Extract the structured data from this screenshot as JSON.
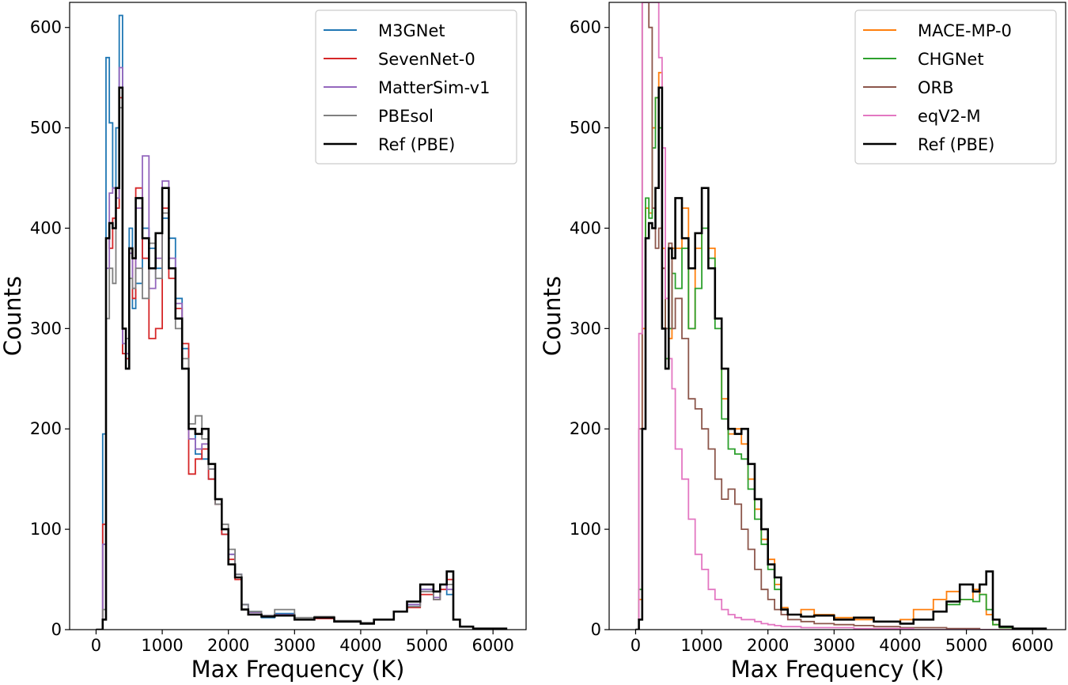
{
  "chart_data": [
    {
      "type": "step-histogram",
      "xlabel": "Max Frequency (K)",
      "ylabel": "Counts",
      "xlim": [
        -400,
        6500
      ],
      "ylim": [
        0,
        625
      ],
      "xticks": [
        0,
        1000,
        2000,
        3000,
        4000,
        5000,
        6000
      ],
      "yticks": [
        0,
        100,
        200,
        300,
        400,
        500,
        600
      ],
      "legend_position": "upper-right",
      "series": [
        {
          "name": "M3GNet",
          "color": "#1f77b4",
          "x": [
            0,
            100,
            150,
            200,
            250,
            300,
            350,
            400,
            450,
            500,
            550,
            600,
            700,
            800,
            900,
            1000,
            1100,
            1200,
            1300,
            1400,
            1500,
            1600,
            1700,
            1800,
            1900,
            2000,
            2100,
            2200,
            2300,
            2500,
            2700,
            3000,
            3300,
            3600,
            4000,
            4200,
            4500,
            4700,
            4900,
            5100,
            5200,
            5300,
            5400,
            5500,
            5700,
            6200
          ],
          "y": [
            0,
            195,
            570,
            505,
            440,
            500,
            612,
            275,
            270,
            400,
            320,
            345,
            400,
            380,
            360,
            410,
            390,
            330,
            280,
            200,
            175,
            170,
            150,
            125,
            95,
            75,
            55,
            25,
            18,
            12,
            16,
            10,
            12,
            8,
            6,
            10,
            18,
            25,
            40,
            30,
            45,
            35,
            10,
            3,
            1,
            0
          ]
        },
        {
          "name": "SevenNet-0",
          "color": "#d62728",
          "x": [
            0,
            100,
            150,
            200,
            250,
            300,
            350,
            400,
            450,
            500,
            550,
            600,
            700,
            800,
            900,
            1000,
            1100,
            1200,
            1300,
            1400,
            1500,
            1600,
            1700,
            1800,
            1900,
            2000,
            2100,
            2200,
            2300,
            2500,
            2700,
            3000,
            3300,
            3600,
            4000,
            4200,
            4500,
            4700,
            4900,
            5100,
            5200,
            5300,
            5400,
            5500,
            5700,
            6200
          ],
          "y": [
            0,
            105,
            390,
            380,
            410,
            420,
            530,
            275,
            270,
            380,
            330,
            440,
            370,
            290,
            300,
            420,
            350,
            320,
            285,
            155,
            170,
            180,
            150,
            125,
            95,
            70,
            50,
            20,
            15,
            13,
            14,
            10,
            11,
            8,
            6,
            10,
            18,
            22,
            35,
            30,
            40,
            50,
            10,
            3,
            1,
            0
          ]
        },
        {
          "name": "MatterSim-v1",
          "color": "#9467bd",
          "x": [
            0,
            100,
            150,
            200,
            250,
            300,
            350,
            400,
            450,
            500,
            550,
            600,
            700,
            800,
            900,
            1000,
            1100,
            1200,
            1300,
            1400,
            1500,
            1600,
            1700,
            1800,
            1900,
            2000,
            2100,
            2200,
            2300,
            2500,
            2700,
            3000,
            3300,
            3600,
            4000,
            4200,
            4500,
            4700,
            4900,
            5100,
            5200,
            5300,
            5400,
            5500,
            5700,
            6200
          ],
          "y": [
            0,
            85,
            360,
            435,
            440,
            430,
            560,
            285,
            275,
            375,
            340,
            420,
            472,
            340,
            370,
            447,
            370,
            325,
            260,
            190,
            180,
            185,
            160,
            130,
            100,
            75,
            55,
            25,
            17,
            14,
            15,
            10,
            12,
            8,
            6,
            10,
            18,
            25,
            40,
            32,
            45,
            40,
            10,
            3,
            1,
            0
          ]
        },
        {
          "name": "PBEsol",
          "color": "#7f7f7f",
          "x": [
            0,
            100,
            150,
            200,
            250,
            300,
            350,
            400,
            450,
            500,
            550,
            600,
            700,
            800,
            900,
            1000,
            1100,
            1200,
            1300,
            1400,
            1500,
            1600,
            1700,
            1800,
            1900,
            2000,
            2100,
            2200,
            2300,
            2500,
            2700,
            3000,
            3300,
            3600,
            4000,
            4200,
            4500,
            4700,
            4900,
            5100,
            5200,
            5300,
            5400,
            5500,
            5700,
            6200
          ],
          "y": [
            0,
            20,
            310,
            360,
            345,
            440,
            520,
            300,
            290,
            350,
            340,
            360,
            330,
            385,
            350,
            415,
            360,
            300,
            270,
            205,
            213,
            190,
            160,
            125,
            105,
            80,
            55,
            25,
            18,
            14,
            20,
            12,
            13,
            9,
            7,
            10,
            18,
            23,
            38,
            30,
            45,
            45,
            10,
            3,
            1,
            0
          ]
        },
        {
          "name": "Ref (PBE)",
          "color": "#000000",
          "width": 2.6,
          "x": [
            0,
            100,
            150,
            200,
            250,
            300,
            350,
            400,
            450,
            500,
            550,
            600,
            700,
            800,
            900,
            1000,
            1100,
            1200,
            1300,
            1400,
            1500,
            1600,
            1700,
            1800,
            1900,
            2000,
            2100,
            2200,
            2300,
            2500,
            2700,
            3000,
            3300,
            3600,
            4000,
            4200,
            4500,
            4700,
            4900,
            5100,
            5200,
            5300,
            5400,
            5500,
            5700,
            6200
          ],
          "y": [
            0,
            10,
            390,
            405,
            400,
            440,
            540,
            300,
            260,
            380,
            370,
            430,
            390,
            360,
            395,
            440,
            360,
            310,
            260,
            200,
            195,
            200,
            165,
            130,
            100,
            65,
            52,
            20,
            15,
            13,
            14,
            10,
            12,
            8,
            6,
            10,
            18,
            28,
            45,
            38,
            45,
            58,
            10,
            3,
            1,
            0
          ]
        }
      ]
    },
    {
      "type": "step-histogram",
      "xlabel": "Max Frequency (K)",
      "ylabel": "Counts",
      "xlim": [
        -400,
        6500
      ],
      "ylim": [
        0,
        625
      ],
      "xticks": [
        0,
        1000,
        2000,
        3000,
        4000,
        5000,
        6000
      ],
      "yticks": [
        0,
        100,
        200,
        300,
        400,
        500,
        600
      ],
      "legend_position": "upper-right",
      "series": [
        {
          "name": "MACE-MP-0",
          "color": "#ff7f0e",
          "x": [
            0,
            50,
            100,
            150,
            200,
            250,
            300,
            350,
            400,
            450,
            500,
            550,
            600,
            700,
            800,
            900,
            1000,
            1100,
            1200,
            1300,
            1400,
            1500,
            1600,
            1700,
            1800,
            1900,
            2000,
            2100,
            2200,
            2300,
            2500,
            2700,
            3000,
            3300,
            3600,
            4000,
            4200,
            4500,
            4700,
            4900,
            5100,
            5200,
            5300,
            5400,
            5500,
            5700,
            6200
          ],
          "y": [
            0,
            30,
            300,
            420,
            415,
            500,
            530,
            555,
            380,
            270,
            290,
            380,
            380,
            420,
            300,
            380,
            440,
            380,
            310,
            230,
            195,
            200,
            185,
            150,
            120,
            90,
            70,
            45,
            22,
            15,
            20,
            15,
            12,
            10,
            8,
            10,
            20,
            30,
            38,
            30,
            40,
            35,
            15,
            5,
            2,
            0
          ]
        },
        {
          "name": "CHGNet",
          "color": "#2ca02c",
          "x": [
            0,
            50,
            100,
            150,
            200,
            250,
            300,
            350,
            400,
            450,
            500,
            550,
            600,
            700,
            800,
            900,
            1000,
            1100,
            1200,
            1300,
            1400,
            1500,
            1600,
            1700,
            1800,
            1900,
            2000,
            2100,
            2200,
            2300,
            2500,
            2700,
            3000,
            3300,
            3600,
            4000,
            4200,
            4500,
            4700,
            4900,
            5100,
            5200,
            5300,
            5400,
            5500,
            5700,
            6200
          ],
          "y": [
            0,
            40,
            200,
            430,
            410,
            480,
            530,
            500,
            360,
            270,
            300,
            355,
            340,
            380,
            300,
            340,
            400,
            370,
            300,
            210,
            180,
            175,
            170,
            140,
            110,
            85,
            60,
            40,
            20,
            15,
            13,
            14,
            10,
            12,
            8,
            6,
            10,
            18,
            25,
            30,
            28,
            35,
            20,
            5,
            2,
            0
          ]
        },
        {
          "name": "ORB",
          "color": "#8c564b",
          "x": [
            0,
            50,
            100,
            150,
            200,
            250,
            300,
            350,
            400,
            450,
            500,
            550,
            600,
            700,
            800,
            900,
            1000,
            1100,
            1200,
            1300,
            1400,
            1500,
            1600,
            1700,
            1800,
            1900,
            2000,
            2100,
            2200,
            2300,
            2500,
            2700,
            3000,
            3300,
            3600,
            4000,
            4200,
            4500,
            4700,
            4900,
            5100,
            5200,
            5300,
            5400,
            5500,
            5700,
            6200
          ],
          "y": [
            0,
            200,
            625,
            625,
            600,
            420,
            380,
            400,
            360,
            300,
            385,
            300,
            330,
            290,
            230,
            220,
            200,
            180,
            150,
            130,
            140,
            125,
            100,
            80,
            60,
            40,
            30,
            20,
            15,
            10,
            8,
            6,
            5,
            4,
            3,
            2,
            2,
            2,
            1,
            1,
            1,
            0,
            0,
            0,
            0,
            0
          ]
        },
        {
          "name": "eqV2-M",
          "color": "#e377c2",
          "x": [
            0,
            50,
            100,
            150,
            200,
            250,
            300,
            350,
            400,
            450,
            500,
            550,
            600,
            700,
            800,
            900,
            1000,
            1100,
            1200,
            1300,
            1400,
            1500,
            1600,
            1700,
            1800,
            1900,
            2000,
            2100,
            2200,
            2300,
            2500,
            2700,
            3000,
            3300,
            3600,
            4000,
            4200,
            4500,
            4700,
            4900,
            5100,
            5200,
            5300,
            5400,
            5500,
            5700,
            6200
          ],
          "y": [
            0,
            295,
            625,
            625,
            625,
            625,
            625,
            570,
            480,
            330,
            270,
            240,
            180,
            150,
            110,
            75,
            60,
            40,
            30,
            20,
            15,
            12,
            10,
            10,
            8,
            6,
            5,
            4,
            3,
            3,
            2,
            2,
            2,
            1,
            1,
            1,
            0,
            0,
            0,
            0,
            0,
            0,
            0,
            0,
            0,
            0
          ]
        },
        {
          "name": "Ref (PBE)",
          "color": "#000000",
          "width": 2.6,
          "x": [
            0,
            50,
            100,
            150,
            200,
            250,
            300,
            350,
            400,
            450,
            500,
            550,
            600,
            700,
            800,
            900,
            1000,
            1100,
            1200,
            1300,
            1400,
            1500,
            1600,
            1700,
            1800,
            1900,
            2000,
            2100,
            2200,
            2300,
            2500,
            2700,
            3000,
            3300,
            3600,
            4000,
            4200,
            4500,
            4700,
            4900,
            5100,
            5200,
            5300,
            5400,
            5500,
            5700,
            6200
          ],
          "y": [
            0,
            10,
            200,
            390,
            405,
            400,
            440,
            540,
            300,
            260,
            380,
            370,
            430,
            390,
            360,
            395,
            440,
            360,
            310,
            260,
            200,
            195,
            200,
            165,
            130,
            100,
            65,
            52,
            20,
            15,
            13,
            14,
            10,
            12,
            8,
            6,
            10,
            18,
            28,
            45,
            38,
            45,
            58,
            10,
            3,
            1,
            0
          ]
        }
      ]
    }
  ]
}
